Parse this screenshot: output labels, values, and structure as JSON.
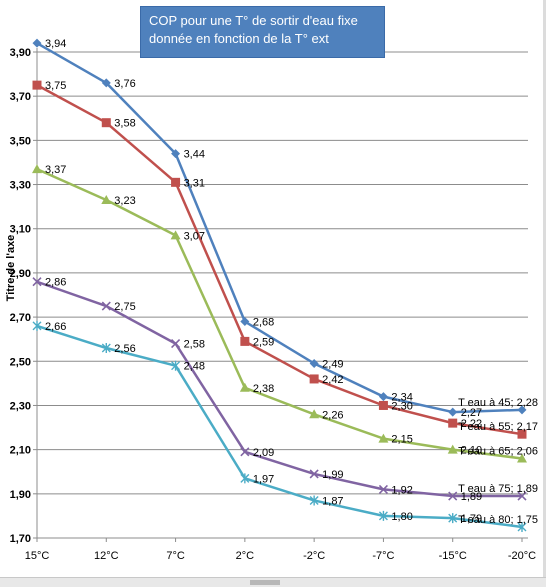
{
  "chart_data": {
    "type": "line",
    "title_lines": [
      "COP pour une T° de sortir d'eau fixe",
      "donnée  en fonction de la T° ext"
    ],
    "ylabel": "Titre de l'axe",
    "xlabel": "",
    "categories": [
      "15°C",
      "12°C",
      "7°C",
      "2°C",
      "-2°C",
      "-7°C",
      "-15°C",
      "-20°C"
    ],
    "y_ticks": [
      "3,90",
      "3,70",
      "3,50",
      "3,30",
      "3,10",
      "2,90",
      "2,70",
      "2,50",
      "2,30",
      "2,10",
      "1,90",
      "1,70"
    ],
    "ylim": [
      1.7,
      3.9
    ],
    "grid": true,
    "series": [
      {
        "name": "T eau à 45",
        "color": "#4f81bd",
        "marker": "diamond",
        "values": [
          3.94,
          3.76,
          3.44,
          2.68,
          2.49,
          2.34,
          2.27,
          2.28
        ],
        "labels": [
          "3,94",
          "3,76",
          "3,44",
          "2,68",
          "2,49",
          "2,34",
          "2,27",
          "T eau à 45; 2,28"
        ]
      },
      {
        "name": "T eau à 55",
        "color": "#c0504d",
        "marker": "square",
        "values": [
          3.75,
          3.58,
          3.31,
          2.59,
          2.42,
          2.3,
          2.22,
          2.17
        ],
        "labels": [
          "3,75",
          "3,58",
          "3,31",
          "2,59",
          "2,42",
          "2,30",
          "2,22",
          "T eau à 55; 2,17"
        ]
      },
      {
        "name": "T eau à 65",
        "color": "#9bbb59",
        "marker": "triangle",
        "values": [
          3.37,
          3.23,
          3.07,
          2.38,
          2.26,
          2.15,
          2.1,
          2.06
        ],
        "labels": [
          "3,37",
          "3,23",
          "3,07",
          "2,38",
          "2,26",
          "2,15",
          "2,10",
          "T eau à 65; 2,06"
        ]
      },
      {
        "name": "T eau à 75",
        "color": "#8064a2",
        "marker": "x",
        "values": [
          2.86,
          2.75,
          2.58,
          2.09,
          1.99,
          1.92,
          1.89,
          1.89
        ],
        "labels": [
          "2,86",
          "2,75",
          "2,58",
          "2,09",
          "1,99",
          "1,92",
          "1,89",
          "T eau à 75; 1,89"
        ]
      },
      {
        "name": "T eau à 80",
        "color": "#4bacc6",
        "marker": "star",
        "values": [
          2.66,
          2.56,
          2.48,
          1.97,
          1.87,
          1.8,
          1.79,
          1.75
        ],
        "labels": [
          "2,66",
          "2,56",
          "2,48",
          "1,97",
          "1,87",
          "1,80",
          "1,79",
          "T eau à 80; 1,75"
        ]
      }
    ]
  }
}
